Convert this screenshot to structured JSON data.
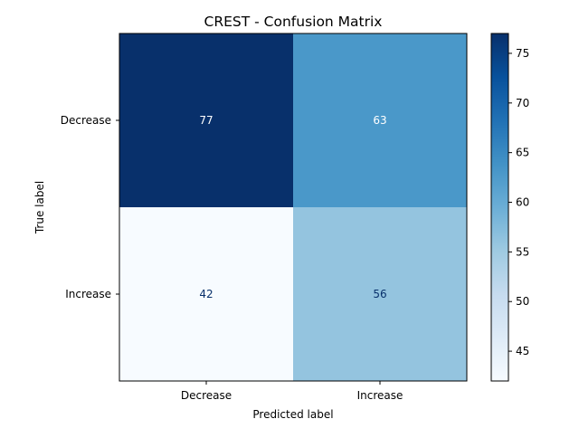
{
  "chart_data": {
    "type": "heatmap",
    "title": "CREST - Confusion Matrix",
    "xlabel": "Predicted label",
    "ylabel": "True label",
    "x_categories": [
      "Decrease",
      "Increase"
    ],
    "y_categories": [
      "Decrease",
      "Increase"
    ],
    "values": [
      [
        77,
        63
      ],
      [
        42,
        56
      ]
    ],
    "colormap": "Blues",
    "colorbar": {
      "range": [
        42,
        77
      ],
      "ticks": [
        45,
        50,
        55,
        60,
        65,
        70,
        75
      ]
    },
    "grid": false
  }
}
